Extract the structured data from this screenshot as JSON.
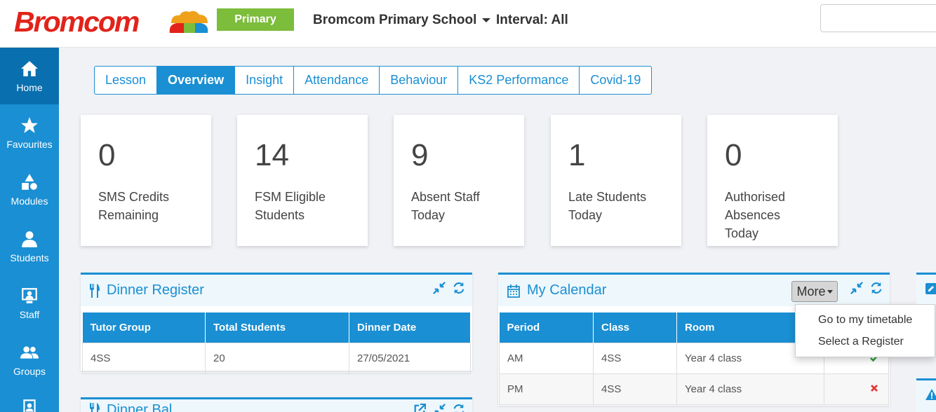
{
  "header": {
    "logo_text": "Bromcom",
    "level_badge": "Primary",
    "school_name": "Bromcom Primary School",
    "interval": "Interval: All",
    "search_placeholder": ""
  },
  "sidebar": {
    "items": [
      {
        "label": "Home",
        "icon": "home-icon",
        "active": true
      },
      {
        "label": "Favourites",
        "icon": "star-icon"
      },
      {
        "label": "Modules",
        "icon": "shapes-icon"
      },
      {
        "label": "Students",
        "icon": "user-icon"
      },
      {
        "label": "Staff",
        "icon": "staff-icon"
      },
      {
        "label": "Groups",
        "icon": "group-icon"
      }
    ]
  },
  "tabs": [
    {
      "label": "Lesson"
    },
    {
      "label": "Overview",
      "active": true
    },
    {
      "label": "Insight"
    },
    {
      "label": "Attendance"
    },
    {
      "label": "Behaviour"
    },
    {
      "label": "KS2 Performance"
    },
    {
      "label": "Covid-19"
    }
  ],
  "kpis": [
    {
      "value": "0",
      "label": "SMS Credits Remaining"
    },
    {
      "value": "14",
      "label": "FSM Eligible Students"
    },
    {
      "value": "9",
      "label": "Absent Staff Today"
    },
    {
      "value": "1",
      "label": "Late Students Today"
    },
    {
      "value": "0",
      "label": "Authorised Absences Today"
    }
  ],
  "dinner_register": {
    "title": "Dinner Register",
    "columns": [
      "Tutor Group",
      "Total Students",
      "Dinner Date"
    ],
    "rows": [
      [
        "4SS",
        "20",
        "27/05/2021"
      ]
    ]
  },
  "dinner_second": {
    "title": "Dinner Bal"
  },
  "calendar": {
    "title": "My Calendar",
    "more_label": "More",
    "columns": [
      "Period",
      "Class",
      "Room",
      ""
    ],
    "rows": [
      {
        "period": "AM",
        "class": "4SS",
        "room": "Year 4 class",
        "status": "present"
      },
      {
        "period": "PM",
        "class": "4SS",
        "room": "Year 4 class",
        "status": "absent"
      }
    ],
    "status_colors": {
      "present": "#2e9e3f",
      "absent": "#e23b3b"
    }
  },
  "more_menu": {
    "items": [
      "Go to my timetable",
      "Select a Register"
    ]
  },
  "colors": {
    "accent": "#1a8fd3",
    "brand_red": "#e2231a",
    "badge_green": "#7cbd3b"
  }
}
